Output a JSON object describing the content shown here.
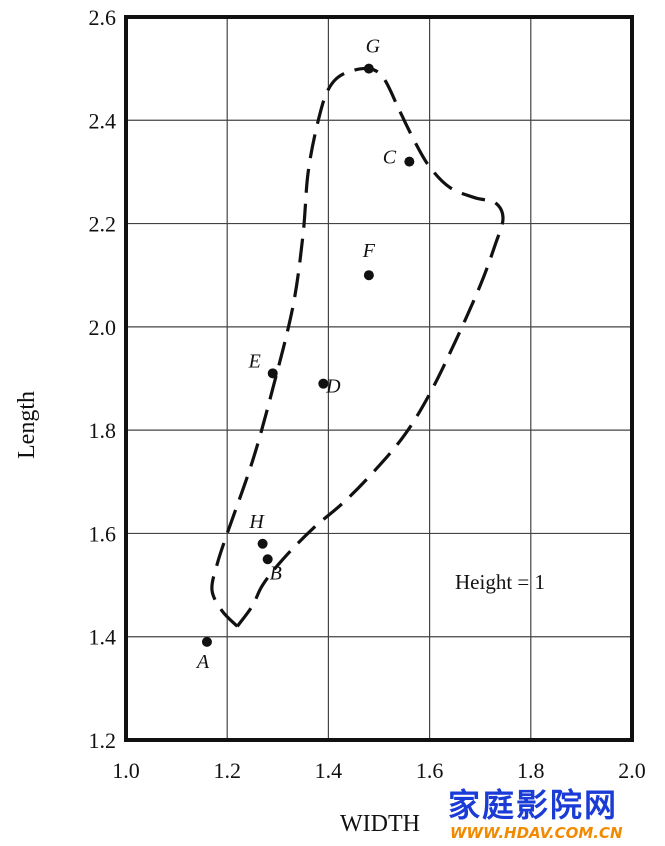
{
  "chart_data": {
    "type": "scatter",
    "xlabel": "WIDTH",
    "ylabel": "Length",
    "xlim": [
      1.0,
      2.0
    ],
    "ylim": [
      1.2,
      2.6
    ],
    "xticks": [
      "1.0",
      "1.2",
      "1.4",
      "1.6",
      "1.8",
      "2.0"
    ],
    "yticks": [
      "1.2",
      "1.4",
      "1.6",
      "1.8",
      "2.0",
      "2.2",
      "2.4",
      "2.6"
    ],
    "grid": true,
    "points": [
      {
        "label": "A",
        "x": 1.16,
        "y": 1.39
      },
      {
        "label": "B",
        "x": 1.28,
        "y": 1.55
      },
      {
        "label": "C",
        "x": 1.56,
        "y": 2.32
      },
      {
        "label": "D",
        "x": 1.39,
        "y": 1.89
      },
      {
        "label": "E",
        "x": 1.29,
        "y": 1.91
      },
      {
        "label": "F",
        "x": 1.48,
        "y": 2.1
      },
      {
        "label": "G",
        "x": 1.48,
        "y": 2.5
      },
      {
        "label": "H",
        "x": 1.27,
        "y": 1.58
      }
    ],
    "region_boundary": [
      [
        1.22,
        1.42
      ],
      [
        1.19,
        1.45
      ],
      [
        1.17,
        1.49
      ],
      [
        1.18,
        1.54
      ],
      [
        1.2,
        1.6
      ],
      [
        1.25,
        1.74
      ],
      [
        1.29,
        1.88
      ],
      [
        1.33,
        2.04
      ],
      [
        1.35,
        2.18
      ],
      [
        1.36,
        2.3
      ],
      [
        1.38,
        2.4
      ],
      [
        1.4,
        2.46
      ],
      [
        1.43,
        2.49
      ],
      [
        1.48,
        2.5
      ],
      [
        1.51,
        2.48
      ],
      [
        1.54,
        2.42
      ],
      [
        1.57,
        2.36
      ],
      [
        1.6,
        2.31
      ],
      [
        1.64,
        2.27
      ],
      [
        1.69,
        2.25
      ],
      [
        1.73,
        2.24
      ],
      [
        1.745,
        2.21
      ],
      [
        1.73,
        2.16
      ],
      [
        1.7,
        2.08
      ],
      [
        1.65,
        1.97
      ],
      [
        1.6,
        1.87
      ],
      [
        1.55,
        1.79
      ],
      [
        1.49,
        1.72
      ],
      [
        1.43,
        1.66
      ],
      [
        1.37,
        1.61
      ],
      [
        1.31,
        1.55
      ],
      [
        1.27,
        1.5
      ],
      [
        1.25,
        1.46
      ],
      [
        1.22,
        1.42
      ]
    ],
    "region_style": "dashed",
    "annotation": "Height = 1"
  },
  "watermark": {
    "text_cn": "家庭影院网",
    "url": "WWW.HDAV.COM.CN"
  }
}
